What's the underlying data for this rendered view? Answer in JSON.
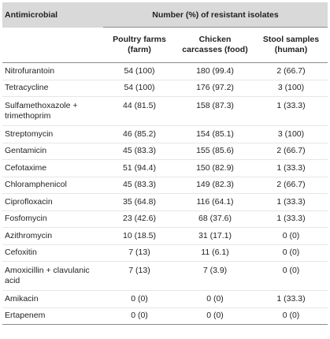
{
  "table": {
    "header": {
      "antimicrobial": "Antimicrobial",
      "group_title": "Number (%) of resistant isolates",
      "columns": [
        {
          "line1": "Poultry farms",
          "line2": "(farm)"
        },
        {
          "line1": "Chicken",
          "line2": "carcasses (food)"
        },
        {
          "line1": "Stool samples",
          "line2": "(human)"
        }
      ]
    },
    "rows": [
      {
        "name_line1": "Nitrofurantoin",
        "name_line2": "",
        "farm": "54 (100)",
        "food": "180 (99.4)",
        "human": "2 (66.7)"
      },
      {
        "name_line1": "Tetracycline",
        "name_line2": "",
        "farm": "54 (100)",
        "food": "176 (97.2)",
        "human": "3 (100)"
      },
      {
        "name_line1": "Sulfamethoxazole +",
        "name_line2": "trimethoprim",
        "farm": "44 (81.5)",
        "food": "158 (87.3)",
        "human": "1 (33.3)"
      },
      {
        "name_line1": "Streptomycin",
        "name_line2": "",
        "farm": "46 (85.2)",
        "food": "154 (85.1)",
        "human": "3 (100)"
      },
      {
        "name_line1": "Gentamicin",
        "name_line2": "",
        "farm": "45 (83.3)",
        "food": "155 (85.6)",
        "human": "2 (66.7)"
      },
      {
        "name_line1": "Cefotaxime",
        "name_line2": "",
        "farm": "51 (94.4)",
        "food": "150 (82.9)",
        "human": "1 (33.3)"
      },
      {
        "name_line1": "Chloramphenicol",
        "name_line2": "",
        "farm": "45 (83.3)",
        "food": "149 (82.3)",
        "human": "2 (66.7)"
      },
      {
        "name_line1": "Ciprofloxacin",
        "name_line2": "",
        "farm": "35 (64.8)",
        "food": "116 (64.1)",
        "human": "1 (33.3)"
      },
      {
        "name_line1": "Fosfomycin",
        "name_line2": "",
        "farm": "23 (42.6)",
        "food": "68 (37.6)",
        "human": "1 (33.3)"
      },
      {
        "name_line1": "Azithromycin",
        "name_line2": "",
        "farm": "10 (18.5)",
        "food": "31 (17.1)",
        "human": "0 (0)"
      },
      {
        "name_line1": "Cefoxitin",
        "name_line2": "",
        "farm": "7 (13)",
        "food": "11 (6.1)",
        "human": "0 (0)"
      },
      {
        "name_line1": "Amoxicillin + clavulanic",
        "name_line2": "acid",
        "farm": "7 (13)",
        "food": "7 (3.9)",
        "human": "0 (0)"
      },
      {
        "name_line1": "Amikacin",
        "name_line2": "",
        "farm": "0 (0)",
        "food": "0 (0)",
        "human": "1 (33.3)"
      },
      {
        "name_line1": "Ertapenem",
        "name_line2": "",
        "farm": "0 (0)",
        "food": "0 (0)",
        "human": "0 (0)"
      }
    ]
  }
}
